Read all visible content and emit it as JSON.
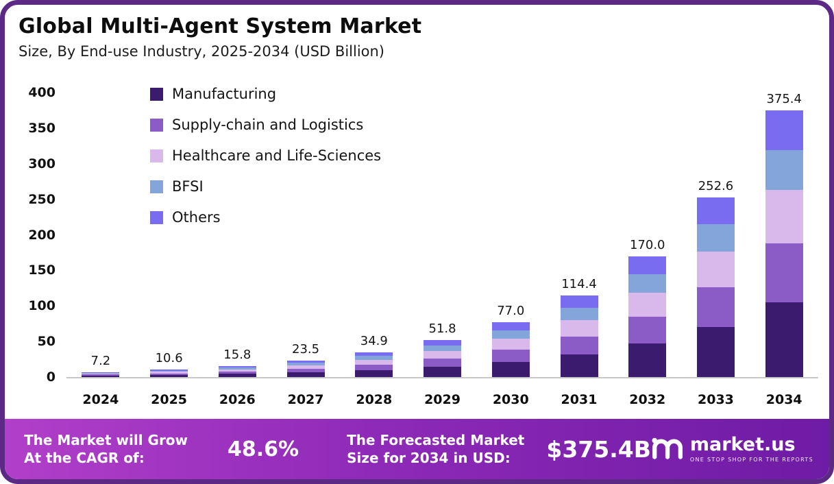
{
  "header": {
    "title": "Global Multi-Agent System Market",
    "subtitle": "Size, By End-use Industry, 2025-2034 (USD Billion)"
  },
  "chart_data": {
    "type": "bar",
    "stacked": true,
    "title": "Global Multi-Agent System Market Size, By End-use Industry, 2025-2034 (USD Billion)",
    "categories": [
      "2024",
      "2025",
      "2026",
      "2027",
      "2028",
      "2029",
      "2030",
      "2031",
      "2032",
      "2033",
      "2034"
    ],
    "totals": [
      7.2,
      10.6,
      15.8,
      23.5,
      34.9,
      51.8,
      77.0,
      114.4,
      170.0,
      252.6,
      375.4
    ],
    "total_labels": [
      "7.2",
      "10.6",
      "15.8",
      "23.5",
      "34.9",
      "51.8",
      "77.0",
      "114.4",
      "170.0",
      "252.6",
      "375.4"
    ],
    "series": [
      {
        "name": "Manufacturing",
        "color": "#3a1b6e",
        "values": [
          2.0,
          3.0,
          4.4,
          6.6,
          9.8,
          14.5,
          21.6,
          32.0,
          47.6,
          70.7,
          105.1
        ]
      },
      {
        "name": "Supply-chain and Logistics",
        "color": "#8b5cc6",
        "values": [
          1.6,
          2.3,
          3.5,
          5.2,
          7.7,
          11.4,
          16.9,
          25.2,
          37.4,
          55.6,
          82.6
        ]
      },
      {
        "name": "Healthcare and Life-Sciences",
        "color": "#d9b9ec",
        "values": [
          1.4,
          2.1,
          3.2,
          4.7,
          7.0,
          10.4,
          15.4,
          22.9,
          34.0,
          50.5,
          75.1
        ]
      },
      {
        "name": "BFSI",
        "color": "#83a5da",
        "values": [
          1.1,
          1.6,
          2.4,
          3.5,
          5.2,
          7.8,
          11.6,
          17.2,
          25.5,
          37.9,
          56.3
        ]
      },
      {
        "name": "Others",
        "color": "#7a6cf0",
        "values": [
          1.1,
          1.6,
          2.3,
          3.5,
          5.2,
          7.7,
          11.5,
          17.1,
          25.5,
          37.9,
          56.3
        ]
      }
    ],
    "xlabel": "",
    "ylabel": "",
    "ylim": [
      0,
      400
    ],
    "yticks": [
      0,
      50,
      100,
      150,
      200,
      250,
      300,
      350,
      400
    ],
    "grid": false,
    "legend_position": "upper-left"
  },
  "banner": {
    "cagr_label_line1": "The Market will Grow",
    "cagr_label_line2": "At the CAGR of:",
    "cagr_value": "48.6%",
    "forecast_label_line1": "The Forecasted Market",
    "forecast_label_line2": "Size for 2034 in USD:",
    "forecast_value": "$375.4B",
    "brand": "market.us",
    "brand_tagline": "ONE STOP SHOP FOR THE REPORTS"
  },
  "colors": {
    "frame_border": "#5c2a85",
    "banner_gradient_start": "#b13fc9",
    "banner_gradient_end": "#6e1ba5"
  }
}
